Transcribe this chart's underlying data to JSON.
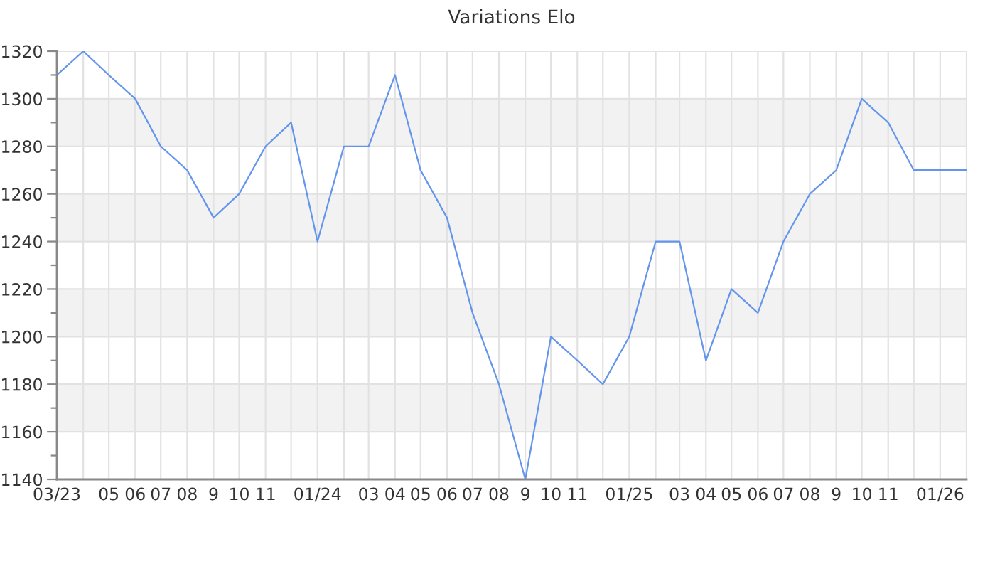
{
  "chart_data": {
    "type": "line",
    "title": "Variations Elo",
    "x": [
      "2023-03",
      "2023-04",
      "2023-05",
      "2023-06",
      "2023-07",
      "2023-08",
      "2023-09",
      "2023-10",
      "2023-11",
      "2023-12",
      "2024-01",
      "2024-02",
      "2024-03",
      "2024-04",
      "2024-05",
      "2024-06",
      "2024-07",
      "2024-08",
      "2024-09",
      "2024-10",
      "2024-11",
      "2024-12",
      "2025-01",
      "2025-02",
      "2025-03",
      "2025-04",
      "2025-05",
      "2025-06",
      "2025-07",
      "2025-08",
      "2025-09",
      "2025-10",
      "2025-11",
      "2025-12",
      "2026-01",
      "2026-02"
    ],
    "series": [
      {
        "color": "#6495ed",
        "values": [
          1310,
          1320,
          1310,
          1300,
          1280,
          1270,
          1250,
          1260,
          1280,
          1290,
          1240,
          1280,
          1280,
          1310,
          1270,
          1250,
          1210,
          1180,
          1140,
          1200,
          1190,
          1180,
          1200,
          1240,
          1240,
          1190,
          1220,
          1210,
          1240,
          1260,
          1270,
          1300,
          1290,
          1270,
          1270,
          1270
        ]
      }
    ],
    "xlim": [
      "2023-03",
      "2026-02"
    ],
    "xticks": [
      {
        "value": "2023-03",
        "label": "03/23"
      },
      {
        "value": "2023-04",
        "label": null
      },
      {
        "value": "2023-05",
        "label": "05"
      },
      {
        "value": "2023-06",
        "label": "06"
      },
      {
        "value": "2023-07",
        "label": "07"
      },
      {
        "value": "2023-08",
        "label": "08"
      },
      {
        "value": "2023-09",
        "label": "9"
      },
      {
        "value": "2023-10",
        "label": "10"
      },
      {
        "value": "2023-11",
        "label": "11"
      },
      {
        "value": "2023-12",
        "label": null
      },
      {
        "value": "2024-01",
        "label": "01/24"
      },
      {
        "value": "2024-02",
        "label": null
      },
      {
        "value": "2024-03",
        "label": "03"
      },
      {
        "value": "2024-04",
        "label": "04"
      },
      {
        "value": "2024-05",
        "label": "05"
      },
      {
        "value": "2024-06",
        "label": "06"
      },
      {
        "value": "2024-07",
        "label": "07"
      },
      {
        "value": "2024-08",
        "label": "08"
      },
      {
        "value": "2024-09",
        "label": "9"
      },
      {
        "value": "2024-10",
        "label": "10"
      },
      {
        "value": "2024-11",
        "label": "11"
      },
      {
        "value": "2024-12",
        "label": null
      },
      {
        "value": "2025-01",
        "label": "01/25"
      },
      {
        "value": "2025-02",
        "label": null
      },
      {
        "value": "2025-03",
        "label": "03"
      },
      {
        "value": "2025-04",
        "label": "04"
      },
      {
        "value": "2025-05",
        "label": "05"
      },
      {
        "value": "2025-06",
        "label": "06"
      },
      {
        "value": "2025-07",
        "label": "07"
      },
      {
        "value": "2025-08",
        "label": "08"
      },
      {
        "value": "2025-09",
        "label": "9"
      },
      {
        "value": "2025-10",
        "label": "10"
      },
      {
        "value": "2025-11",
        "label": "11"
      },
      {
        "value": "2025-12",
        "label": null
      },
      {
        "value": "2026-01",
        "label": "01/26"
      },
      {
        "value": "2026-02",
        "label": null
      }
    ],
    "ylim": [
      1140,
      1320
    ],
    "yticks": [
      1140,
      {
        "value": 1150,
        "label": null
      },
      1160,
      {
        "value": 1170,
        "label": null
      },
      1180,
      {
        "value": 1190,
        "label": null
      },
      1200,
      {
        "value": 1210,
        "label": null
      },
      1220,
      {
        "value": 1230,
        "label": null
      },
      1240,
      {
        "value": 1250,
        "label": null
      },
      1260,
      {
        "value": 1270,
        "label": null
      },
      1280,
      {
        "value": 1290,
        "label": null
      },
      1300,
      {
        "value": 1310,
        "label": null
      },
      1320
    ],
    "bands": [
      {
        "axis": "y",
        "from": 1160,
        "to": 1180,
        "color": "#f2f2f2"
      },
      {
        "axis": "y",
        "from": 1200,
        "to": 1220,
        "color": "#f2f2f2"
      },
      {
        "axis": "y",
        "from": 1240,
        "to": 1260,
        "color": "#f2f2f2"
      },
      {
        "axis": "y",
        "from": 1280,
        "to": 1300,
        "color": "#f2f2f2"
      }
    ],
    "grid": true
  }
}
